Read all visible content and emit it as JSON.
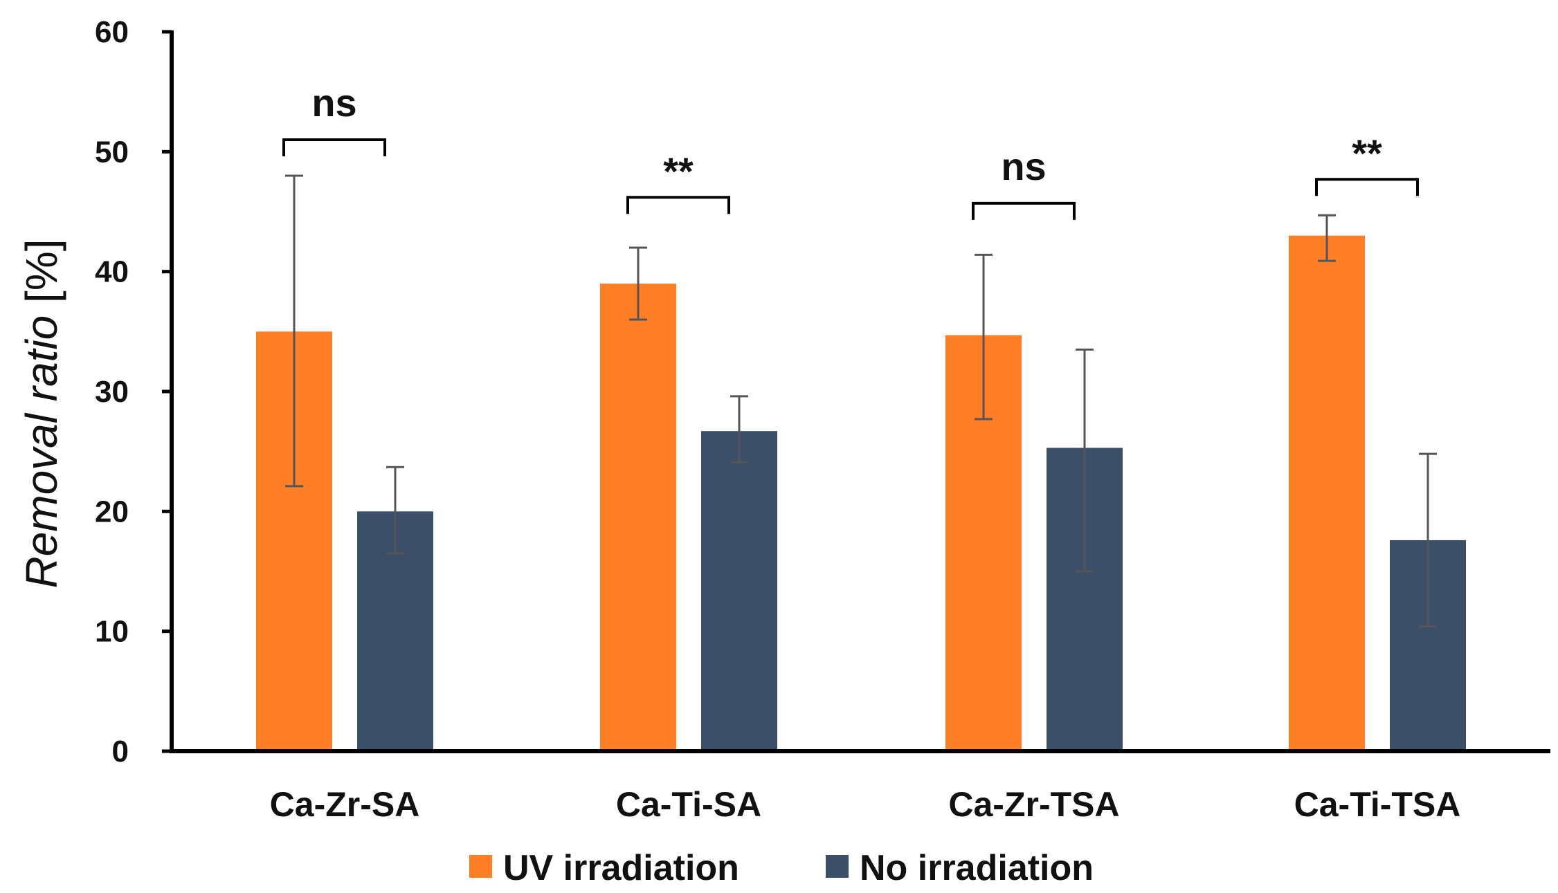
{
  "chart_data": {
    "type": "bar",
    "title": "",
    "xlabel": "",
    "ylabel": {
      "italic": "Removal ratio",
      "unit": " [%]"
    },
    "ylim": [
      0,
      60
    ],
    "yticks": [
      "0",
      "10",
      "20",
      "30",
      "40",
      "50",
      "60"
    ],
    "ytick_values": [
      0,
      10,
      20,
      30,
      40,
      50,
      60
    ],
    "grid": false,
    "legend_placement": "bottom-center",
    "categories": [
      "Ca-Zr-SA",
      "Ca-Ti-SA",
      "Ca-Zr-TSA",
      "Ca-Ti-TSA"
    ],
    "series": [
      {
        "name": "UV irradiation",
        "color": "#FF7F27",
        "values": [
          35.0,
          39.0,
          34.7,
          43.0
        ],
        "error_low": [
          22.1,
          36.0,
          27.7,
          40.9
        ],
        "error_high": [
          48.0,
          42.0,
          41.4,
          44.7
        ]
      },
      {
        "name": "No irradiation",
        "color": "#3B5068",
        "values": [
          20.0,
          26.7,
          25.3,
          17.6
        ],
        "error_low": [
          16.5,
          24.1,
          15.0,
          10.4
        ],
        "error_high": [
          23.7,
          29.6,
          33.5,
          24.8
        ]
      }
    ],
    "significance": [
      {
        "label": "ns",
        "bracket_y": 51.0
      },
      {
        "label": "**",
        "bracket_y": 46.2
      },
      {
        "label": "ns",
        "bracket_y": 45.7
      },
      {
        "label": "**",
        "bracket_y": 47.7
      }
    ]
  }
}
